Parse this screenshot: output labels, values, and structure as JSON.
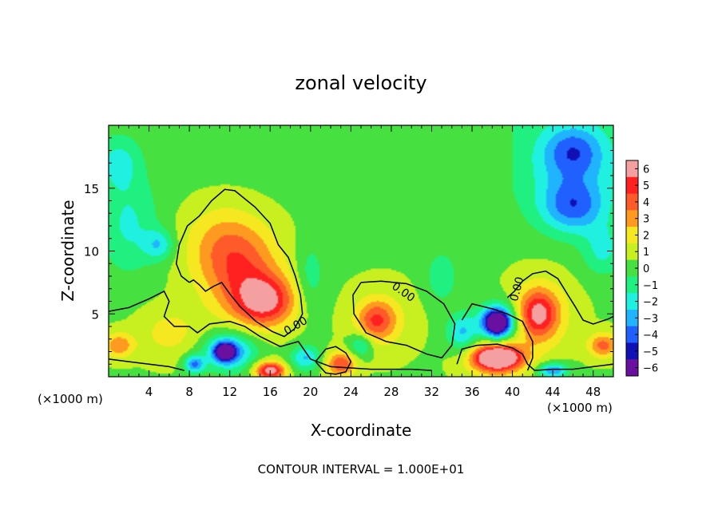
{
  "chart_data": {
    "type": "heatmap",
    "title": "zonal velocity",
    "xlabel": "X-coordinate",
    "ylabel": "Z-coordinate",
    "x_unit": "(×1000 m)",
    "x_unit_right": "(×1000 m)",
    "xlim": [
      0,
      50
    ],
    "ylim": [
      0,
      20
    ],
    "x_ticks": [
      4,
      8,
      12,
      16,
      20,
      24,
      28,
      32,
      36,
      40,
      44,
      48
    ],
    "y_ticks": [
      5,
      10,
      15
    ],
    "colorbar": {
      "levels": [
        6,
        5,
        4,
        3,
        2,
        1,
        0,
        -1,
        -2,
        -3,
        -4,
        -5,
        -6
      ],
      "labels": [
        "6",
        "5",
        "4",
        "3",
        "2",
        "1",
        "0",
        "−1",
        "−2",
        "−3",
        "−4",
        "−5",
        "−6"
      ],
      "colors": [
        "#f4a0a0",
        "#ff2020",
        "#ff5a2a",
        "#ff9a20",
        "#f6e820",
        "#c8f020",
        "#46e040",
        "#20f080",
        "#20f0e0",
        "#20b4ff",
        "#2060ff",
        "#1010b4",
        "#6a10a0"
      ]
    },
    "contour_label": "0.00",
    "footer": "CONTOUR INTERVAL = 1.000E+01",
    "features": [
      {
        "x": 15.5,
        "z": 6.0,
        "value": 5,
        "rx": 3,
        "rz": 2.0
      },
      {
        "x": 13.0,
        "z": 8.5,
        "value": 3.5,
        "rx": 4,
        "rz": 3.5
      },
      {
        "x": 11.0,
        "z": 11.0,
        "value": 1.5,
        "rx": 4,
        "rz": 3
      },
      {
        "x": 6.0,
        "z": 3.5,
        "value": 1.5,
        "rx": 3,
        "rz": 2
      },
      {
        "x": 1.0,
        "z": 2.5,
        "value": 3,
        "rx": 1.5,
        "rz": 1
      },
      {
        "x": 26.5,
        "z": 4.5,
        "value": 3,
        "rx": 1.8,
        "rz": 1.5
      },
      {
        "x": 27.0,
        "z": 4.5,
        "value": 1.5,
        "rx": 3,
        "rz": 2.5
      },
      {
        "x": 42.5,
        "z": 5.0,
        "value": 4,
        "rx": 1.8,
        "rz": 1.8
      },
      {
        "x": 43.0,
        "z": 5.0,
        "value": 2,
        "rx": 3,
        "rz": 3
      },
      {
        "x": 49.0,
        "z": 2.5,
        "value": 3.5,
        "rx": 1.5,
        "rz": 1
      },
      {
        "x": 23.0,
        "z": 1.0,
        "value": 4,
        "rx": 1.5,
        "rz": 1
      },
      {
        "x": 38.5,
        "z": 1.5,
        "value": 6,
        "rx": 2,
        "rz": 0.8
      },
      {
        "x": 38.5,
        "z": 1.5,
        "value": 4,
        "rx": 3,
        "rz": 1.5
      },
      {
        "x": 16.0,
        "z": 0.5,
        "value": 6,
        "rx": 1.5,
        "rz": 0.7
      },
      {
        "x": 11.5,
        "z": 2.0,
        "value": -6,
        "rx": 1.0,
        "rz": 0.7
      },
      {
        "x": 12.0,
        "z": 2.0,
        "value": -4,
        "rx": 2.5,
        "rz": 1.5
      },
      {
        "x": 8.5,
        "z": 1.0,
        "value": -4,
        "rx": 1,
        "rz": 0.7
      },
      {
        "x": 38.5,
        "z": 4.3,
        "value": -6,
        "rx": 1.2,
        "rz": 1
      },
      {
        "x": 38.5,
        "z": 4.3,
        "value": -4,
        "rx": 2.0,
        "rz": 1.5
      },
      {
        "x": 19.5,
        "z": 1.5,
        "value": -3,
        "rx": 1.5,
        "rz": 1
      },
      {
        "x": 35.0,
        "z": 3.5,
        "value": -3,
        "rx": 1.5,
        "rz": 1.5
      },
      {
        "x": 44.0,
        "z": 0.5,
        "value": -4,
        "rx": 1.5,
        "rz": 0.6
      },
      {
        "x": 25.0,
        "z": 2.5,
        "value": -2.5,
        "rx": 1.2,
        "rz": 1
      },
      {
        "x": 46.0,
        "z": 18.0,
        "value": -3,
        "rx": 3,
        "rz": 2
      },
      {
        "x": 46.0,
        "z": 13.5,
        "value": -3,
        "rx": 3,
        "rz": 2
      },
      {
        "x": 46.0,
        "z": 15.5,
        "value": -2,
        "rx": 5,
        "rz": 4
      },
      {
        "x": 49.0,
        "z": 10.0,
        "value": -2,
        "rx": 2,
        "rz": 2
      },
      {
        "x": 5.0,
        "z": 10.5,
        "value": -2.5,
        "rx": 1.5,
        "rz": 1.2
      },
      {
        "x": 2.0,
        "z": 12.0,
        "value": -2,
        "rx": 3,
        "rz": 4
      },
      {
        "x": 1.0,
        "z": 17.0,
        "value": -2,
        "rx": 2,
        "rz": 2
      },
      {
        "x": 33.0,
        "z": 8.0,
        "value": -1.8,
        "rx": 1.5,
        "rz": 2
      },
      {
        "x": 20.0,
        "z": 8.0,
        "value": -1.5,
        "rx": 1.5,
        "rz": 3
      }
    ],
    "contours": [
      [
        [
          0,
          5.2
        ],
        [
          2,
          5.5
        ],
        [
          4,
          6.2
        ],
        [
          5.5,
          6.8
        ],
        [
          6,
          6.0
        ],
        [
          5.5,
          4.8
        ],
        [
          6.5,
          4.0
        ],
        [
          8,
          4.0
        ],
        [
          8.8,
          3.5
        ],
        [
          10,
          4.2
        ],
        [
          12,
          4.4
        ],
        [
          13.5,
          4.0
        ],
        [
          15,
          3.2
        ],
        [
          17,
          2.4
        ],
        [
          18.8,
          2.8
        ],
        [
          20,
          1.4
        ],
        [
          22,
          0.8
        ],
        [
          26,
          0.6
        ],
        [
          30,
          0.6
        ],
        [
          32,
          0.5
        ]
      ],
      [
        [
          8,
          7.5
        ],
        [
          7.2,
          8.0
        ],
        [
          6.7,
          9.0
        ],
        [
          7.0,
          10.5
        ],
        [
          7.8,
          12.0
        ],
        [
          9,
          12.8
        ],
        [
          10.2,
          14.0
        ],
        [
          11.5,
          14.9
        ],
        [
          12.5,
          14.8
        ],
        [
          14.5,
          13.5
        ],
        [
          16,
          12.2
        ],
        [
          16.8,
          10.5
        ],
        [
          17.8,
          9.5
        ],
        [
          18.5,
          8.0
        ],
        [
          19.0,
          6.5
        ],
        [
          19.2,
          5.0
        ],
        [
          18.4,
          3.8
        ],
        [
          17.4,
          3.2
        ],
        [
          16.2,
          3.6
        ],
        [
          14.6,
          4.4
        ],
        [
          13.0,
          5.6
        ],
        [
          12.0,
          6.6
        ],
        [
          11.2,
          7.5
        ],
        [
          10.4,
          7.2
        ],
        [
          9.6,
          6.8
        ],
        [
          9.0,
          7.3
        ],
        [
          8.4,
          7.7
        ],
        [
          8,
          7.5
        ]
      ],
      [
        [
          25,
          7.5
        ],
        [
          24.2,
          6.5
        ],
        [
          24.3,
          5.0
        ],
        [
          25.5,
          3.5
        ],
        [
          27.5,
          2.8
        ],
        [
          29.5,
          2.5
        ],
        [
          31.5,
          1.8
        ],
        [
          33.0,
          1.5
        ],
        [
          34.0,
          2.5
        ],
        [
          34.3,
          4.2
        ],
        [
          33.2,
          5.8
        ],
        [
          31.5,
          6.8
        ],
        [
          29.5,
          7.4
        ],
        [
          27.0,
          7.6
        ],
        [
          25,
          7.5
        ]
      ],
      [
        [
          20.5,
          1.2
        ],
        [
          21.5,
          2.2
        ],
        [
          22.5,
          2.4
        ],
        [
          23.5,
          1.9
        ],
        [
          24.0,
          1.2
        ],
        [
          23.5,
          0.4
        ],
        [
          22.5,
          0.2
        ],
        [
          21.5,
          0.3
        ],
        [
          20.5,
          1.2
        ]
      ],
      [
        [
          34.5,
          1.0
        ],
        [
          35.0,
          2.2
        ],
        [
          36.5,
          2.5
        ],
        [
          38.5,
          2.6
        ],
        [
          40.0,
          2.3
        ],
        [
          41.0,
          1.8
        ],
        [
          41.5,
          1.0
        ],
        [
          42.2,
          0.5
        ],
        [
          44,
          0.6
        ],
        [
          46,
          0.6
        ],
        [
          48,
          0.8
        ],
        [
          50,
          1.0
        ]
      ],
      [
        [
          39.5,
          6.3
        ],
        [
          40.2,
          6.8
        ],
        [
          41.0,
          7.6
        ],
        [
          42.0,
          8.2
        ],
        [
          43.3,
          8.4
        ],
        [
          44.5,
          7.8
        ],
        [
          45.5,
          6.5
        ],
        [
          46.2,
          5.6
        ],
        [
          47.0,
          4.5
        ],
        [
          48.0,
          4.2
        ],
        [
          49.5,
          4.6
        ],
        [
          50,
          4.8
        ]
      ],
      [
        [
          41.5,
          0.5
        ],
        [
          42.0,
          1.5
        ],
        [
          42.0,
          2.8
        ],
        [
          41.0,
          4.4
        ],
        [
          39.5,
          5.0
        ],
        [
          38.0,
          5.4
        ],
        [
          37.0,
          5.6
        ],
        [
          36.0,
          5.8
        ],
        [
          35.0,
          4.5
        ]
      ],
      [
        [
          0,
          1.4
        ],
        [
          2,
          1.2
        ],
        [
          4,
          1.0
        ],
        [
          6,
          0.8
        ],
        [
          7.5,
          0.5
        ]
      ]
    ],
    "contour_labels": [
      {
        "x": 29.0,
        "z": 6.5,
        "text": "0.00",
        "angle": 35
      },
      {
        "x": 18.7,
        "z": 3.8,
        "text": "0.00",
        "angle": -30
      },
      {
        "x": 40.8,
        "z": 6.9,
        "text": "0.00",
        "angle": -75
      }
    ]
  }
}
